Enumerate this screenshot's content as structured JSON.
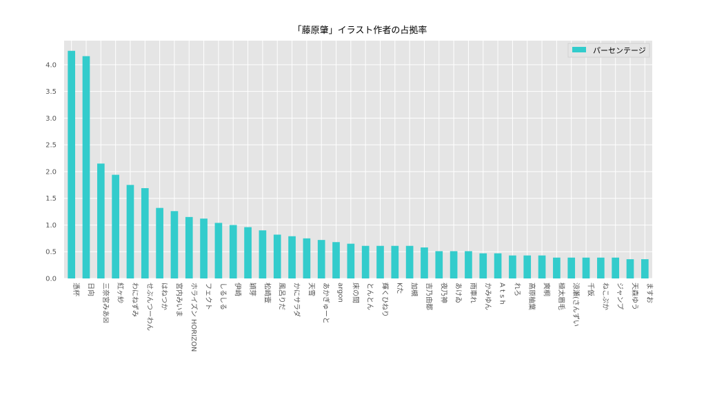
{
  "chart_data": {
    "type": "bar",
    "title": "「藤原肇」イラスト作者の占拠率",
    "xlabel": "",
    "ylabel": "",
    "ylim": [
      0,
      4.45
    ],
    "yticks": [
      "0.0",
      "0.5",
      "1.0",
      "1.5",
      "2.0",
      "2.5",
      "3.0",
      "3.5",
      "4.0"
    ],
    "grid": true,
    "legend_position": "top-right",
    "categories": [
      "憑杯",
      "日向",
      "三奈宮みあ☒",
      "紅ヶ紗",
      "わにねずみ",
      "せぶんつーわん",
      "はねつか",
      "宮内みいま",
      "ホライズン HORIZON",
      "フェクト",
      "しるしる",
      "伊崎",
      "穎芽",
      "松崎壹",
      "風呂りだ",
      "かにサラダ",
      "天雪",
      "あかぎゅーと",
      "argon",
      "床の間",
      "とんとん",
      "輝くひねり",
      "Kた",
      "加槻",
      "吉乃由都",
      "夜乃神",
      "あけゐ",
      "雨車れ",
      "かみゆん",
      "A t s h",
      "れろ",
      "高原柚葉",
      "爽桐",
      "極太眉毛",
      "涼瀬(さんずい",
      "千仮",
      "ねこぷか",
      "ジャンプ",
      "天森ゆう",
      "ますお"
    ],
    "series": [
      {
        "name": "パーセンテージ",
        "color": "#33cccc",
        "values": [
          4.26,
          4.16,
          2.15,
          1.94,
          1.75,
          1.69,
          1.32,
          1.26,
          1.15,
          1.12,
          1.04,
          1.0,
          0.96,
          0.9,
          0.82,
          0.79,
          0.75,
          0.72,
          0.68,
          0.65,
          0.61,
          0.61,
          0.61,
          0.61,
          0.58,
          0.51,
          0.51,
          0.51,
          0.47,
          0.47,
          0.43,
          0.43,
          0.43,
          0.39,
          0.39,
          0.39,
          0.39,
          0.39,
          0.36,
          0.36
        ]
      }
    ]
  }
}
